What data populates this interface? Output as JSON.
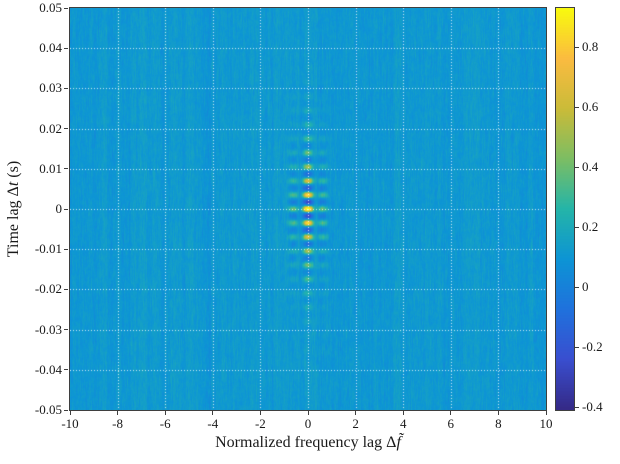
{
  "figure": {
    "background": "#ffffff",
    "axes_color": "#3f3f3f",
    "grid_color": "#ffffff",
    "grid_alpha": 0.8,
    "label_color": "#1a1a1a"
  },
  "chart_data": {
    "type": "heatmap",
    "title": "",
    "xlabel": "Normalized frequency lag Δf̃",
    "xlabel_parts": [
      "Normalized frequency lag Δ",
      "f̃"
    ],
    "ylabel": "Time lag Δt (s)",
    "ylabel_parts": [
      "Time lag Δ",
      "t",
      " (s)"
    ],
    "xlim": [
      -10,
      10
    ],
    "ylim": [
      -0.05,
      0.05
    ],
    "clim": [
      -0.41,
      0.93
    ],
    "grid": {
      "on": true,
      "style": "dotted"
    },
    "x_ticks": {
      "values": [
        -10,
        -8,
        -6,
        -4,
        -2,
        0,
        2,
        4,
        6,
        8,
        10
      ],
      "labels": [
        "-10",
        "-8",
        "-6",
        "-4",
        "-2",
        "0",
        "2",
        "4",
        "6",
        "8",
        "10"
      ]
    },
    "y_ticks": {
      "values": [
        0.05,
        0.04,
        0.03,
        0.02,
        0.01,
        0,
        -0.01,
        -0.02,
        -0.03,
        -0.04,
        -0.05
      ],
      "labels": [
        "0.05",
        "0.04",
        "0.03",
        "0.02",
        "0.01",
        "0",
        "-0.01",
        "-0.02",
        "-0.03",
        "-0.04",
        "-0.05"
      ]
    },
    "colorbar": {
      "position": "right",
      "ticks": {
        "values": [
          0.8,
          0.6,
          0.4,
          0.2,
          0,
          -0.2,
          -0.4
        ],
        "labels": [
          "0.8",
          "0.6",
          "0.4",
          "0.2",
          "0",
          "-0.2",
          "-0.4"
        ]
      }
    },
    "colormap": {
      "name": "parula",
      "stops": [
        [
          0.0,
          "#352a87"
        ],
        [
          0.125,
          "#3a4fd0"
        ],
        [
          0.25,
          "#2072dd"
        ],
        [
          0.375,
          "#0d95d5"
        ],
        [
          0.5,
          "#25b5a9"
        ],
        [
          0.625,
          "#7dbe64"
        ],
        [
          0.75,
          "#cbbb39"
        ],
        [
          0.875,
          "#fbbc41"
        ],
        [
          1.0,
          "#f9fb0e"
        ]
      ]
    },
    "field": {
      "description": "Correlation surface: mottled cyan-blue noise background near 0.1 everywhere, with a sharp yellow-orange peak of ~0.93 at (0,0) surrounded by alternating positive/negative vertical lobes confined to |Δf|<1 and |Δt|<0.02",
      "background_mean": 0.11,
      "background_noise": 0.075,
      "peak_x": 0,
      "peak_y": 0,
      "peak_value": 0.93,
      "x_sigma": 0.6,
      "x_ripple": 0.7,
      "y_env": 0.012,
      "y_osc": 0.0035,
      "pos_gain": 0.95,
      "neg_gain": 0.45,
      "seed": 7
    }
  }
}
